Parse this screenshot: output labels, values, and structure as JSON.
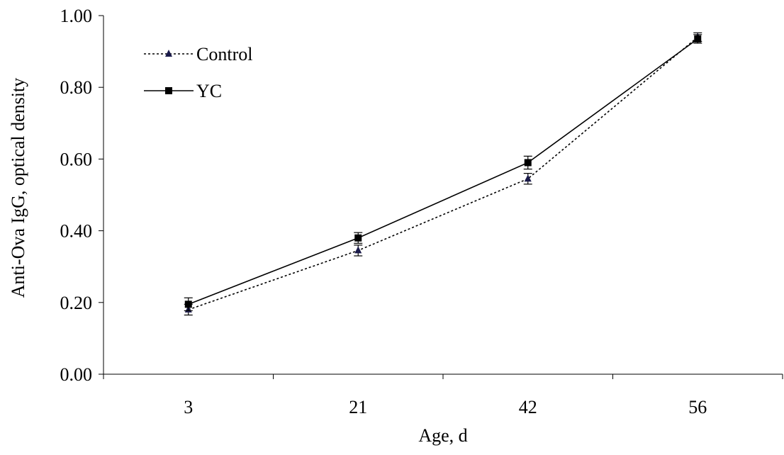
{
  "chart_data": {
    "type": "line",
    "title": "",
    "xlabel": "Age, d",
    "ylabel": "Anti-Ova IgG, optical density",
    "categories": [
      "3",
      "21",
      "42",
      "56"
    ],
    "ylim": [
      0,
      1
    ],
    "yticks": [
      "0.00",
      "0.20",
      "0.40",
      "0.60",
      "0.80",
      "1.00"
    ],
    "grid": false,
    "legend_position": "top-left",
    "series": [
      {
        "name": "Control",
        "values": [
          0.18,
          0.345,
          0.545,
          0.94
        ],
        "errors": [
          0.015,
          0.015,
          0.015,
          0.012
        ],
        "marker": "triangle",
        "line_style": "dotted",
        "color": "#000000",
        "marker_color": "#1a1a4a"
      },
      {
        "name": "YC",
        "values": [
          0.195,
          0.38,
          0.59,
          0.935
        ],
        "errors": [
          0.018,
          0.015,
          0.018,
          0.012
        ],
        "marker": "square",
        "line_style": "solid",
        "color": "#000000",
        "marker_color": "#000000"
      }
    ]
  }
}
